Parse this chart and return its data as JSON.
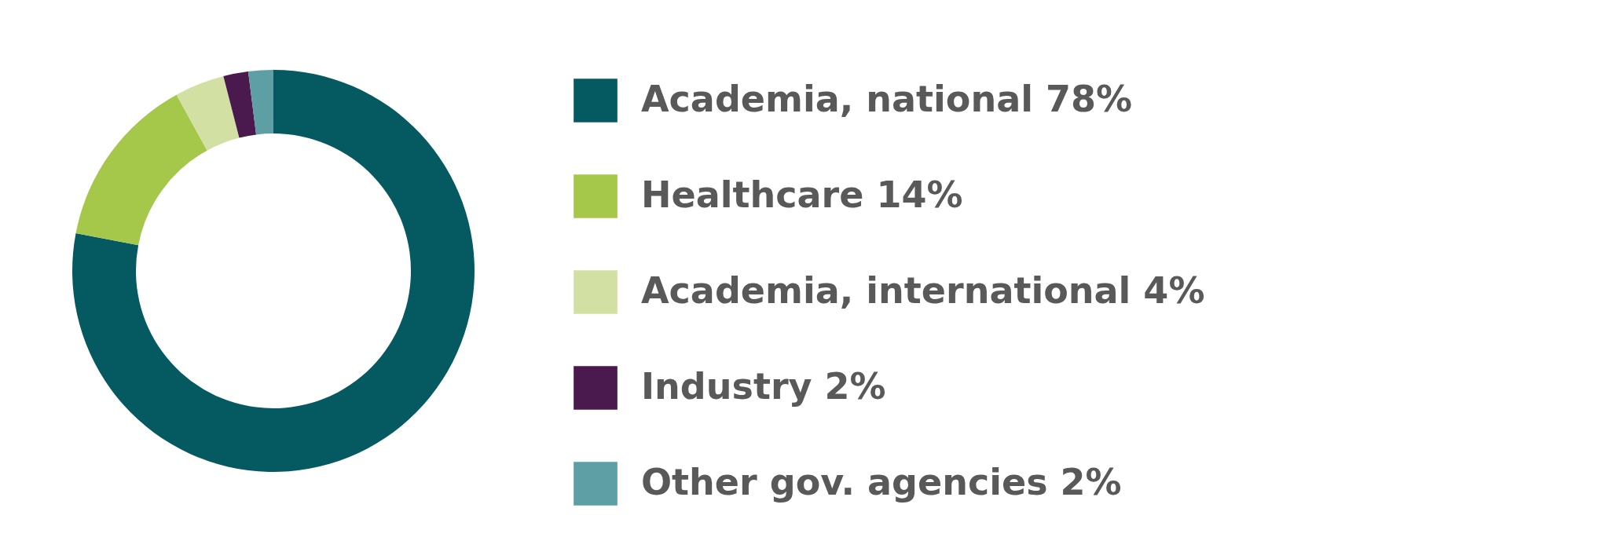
{
  "chart_data": {
    "type": "donut",
    "categories": [
      "Academia, national",
      "Healthcare",
      "Academia, international",
      "Industry",
      "Other gov. agencies"
    ],
    "values": [
      78,
      14,
      4,
      2,
      2
    ],
    "value_labels": [
      "78%",
      "14%",
      "4%",
      "2%",
      "2%"
    ],
    "colors": [
      "#055a61",
      "#a6c84a",
      "#d3e0a3",
      "#4a1a4f",
      "#5e9fa5"
    ],
    "legend": "right"
  }
}
